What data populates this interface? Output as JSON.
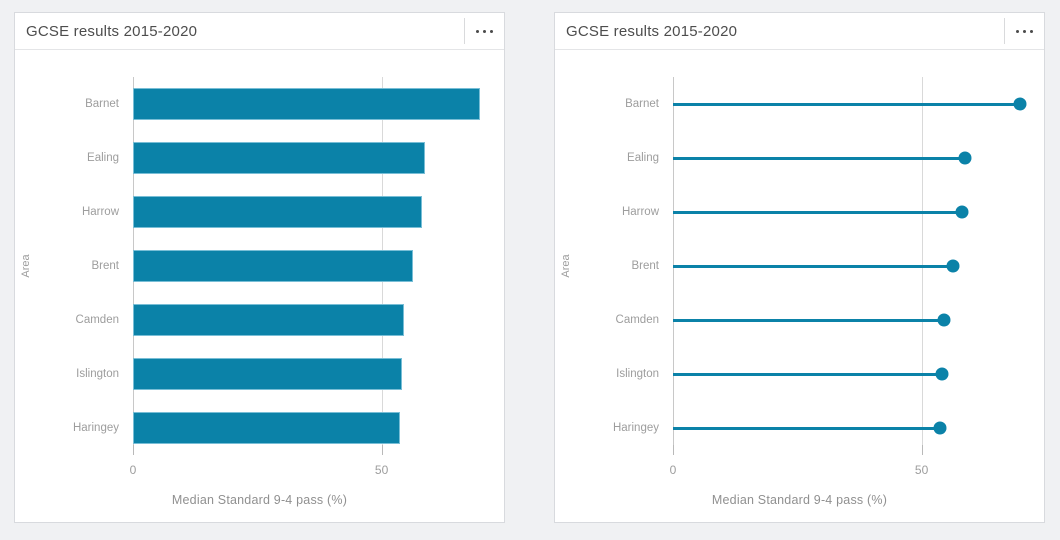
{
  "colors": {
    "accent_teal": "#0b82a8",
    "page_background": "#f0f1f3",
    "card_border": "#d8dade",
    "title_text": "#4d4d4d",
    "label_text": "#9d9d9d",
    "axis_line": "#c8c8c8",
    "gridline": "#d9d9d9"
  },
  "cards": [
    {
      "title": "GCSE results 2015-2020",
      "menu_icon": "ellipsis-icon"
    },
    {
      "title": "GCSE results 2015-2020",
      "menu_icon": "ellipsis-icon"
    }
  ],
  "chart_data": [
    {
      "type": "bar",
      "orientation": "horizontal",
      "title": "GCSE results 2015-2020",
      "categories": [
        "Barnet",
        "Ealing",
        "Harrow",
        "Brent",
        "Camden",
        "Islington",
        "Haringey"
      ],
      "values": [
        69.8,
        58.7,
        58.2,
        56.3,
        54.6,
        54.1,
        53.6
      ],
      "xlabel": "Median Standard 9-4 pass (%)",
      "ylabel": "Area",
      "xlim": [
        0,
        72
      ],
      "xticks": [
        0,
        50
      ],
      "grid": "vertical-at-ticks",
      "legend": "none",
      "mark_color": "#0b82a8"
    },
    {
      "type": "line",
      "subtype": "lollipop",
      "orientation": "horizontal",
      "title": "GCSE results 2015-2020",
      "categories": [
        "Barnet",
        "Ealing",
        "Harrow",
        "Brent",
        "Camden",
        "Islington",
        "Haringey"
      ],
      "values": [
        69.8,
        58.7,
        58.2,
        56.3,
        54.6,
        54.1,
        53.6
      ],
      "xlabel": "Median Standard 9-4 pass (%)",
      "ylabel": "Area",
      "xlim": [
        0,
        72
      ],
      "xticks": [
        0,
        50
      ],
      "grid": "vertical-at-ticks",
      "legend": "none",
      "mark_color": "#0b82a8"
    }
  ]
}
